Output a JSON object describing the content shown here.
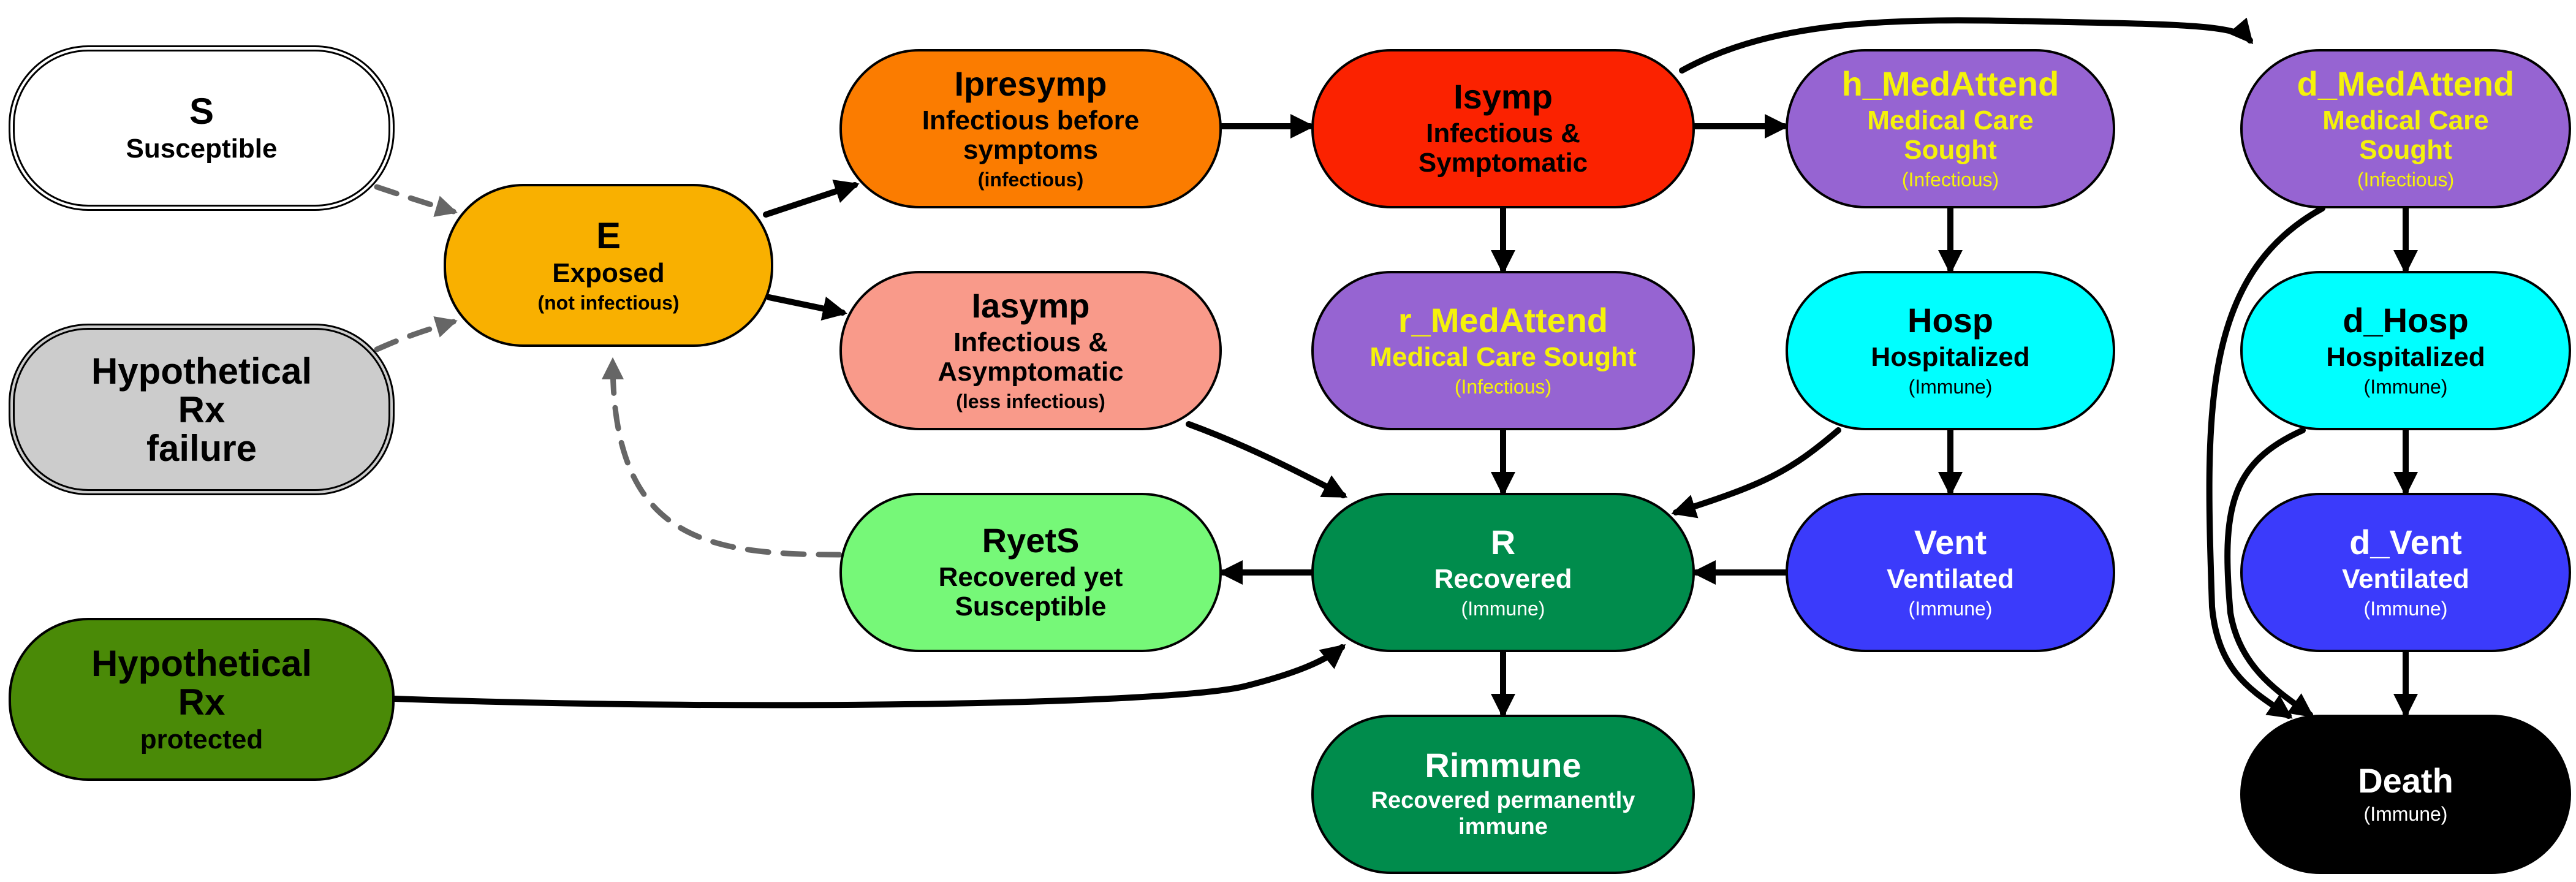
{
  "colors": {
    "susceptible": "#ffffff",
    "rx_failure": "#cccccc",
    "rx_protected": "#4a8a07",
    "exposed": "#f9b000",
    "ipresymp": "#fb7c00",
    "iasymp": "#f99a8a",
    "ryets": "#76f878",
    "isymp": "#fb2200",
    "med_attend": "#9664d2",
    "recovered": "#008c4c",
    "hospitalized": "#00ffff",
    "ventilated": "#3b3bfb",
    "death": "#000000",
    "label_yellow": "#f5f20a",
    "dashed_edge": "#666666"
  },
  "nodes": {
    "S": {
      "title": "S",
      "sub": "Susceptible"
    },
    "rx_failure": {
      "line1": "Hypothetical",
      "line2": "Rx",
      "line3": "failure"
    },
    "rx_protected": {
      "line1": "Hypothetical",
      "line2": "Rx",
      "line3": "protected"
    },
    "E": {
      "title": "E",
      "sub": "Exposed",
      "note": "(not infectious)"
    },
    "Ipresymp": {
      "title": "Ipresymp",
      "sub1": "Infectious before",
      "sub2": "symptoms",
      "note": "(infectious)"
    },
    "Iasymp": {
      "title": "Iasymp",
      "sub1": "Infectious &",
      "sub2": "Asymptomatic",
      "note": "(less infectious)"
    },
    "RyetS": {
      "title": "RyetS",
      "sub1": "Recovered yet",
      "sub2": "Susceptible"
    },
    "Isymp": {
      "title": "Isymp",
      "sub1": "Infectious &",
      "sub2": "Symptomatic"
    },
    "r_MedAttend": {
      "title": "r_MedAttend",
      "sub": "Medical Care Sought",
      "note": "(Infectious)"
    },
    "R": {
      "title": "R",
      "sub": "Recovered",
      "note": "(Immune)"
    },
    "Rimmune": {
      "title": "Rimmune",
      "sub1": "Recovered permanently",
      "sub2": "immune"
    },
    "h_MedAttend": {
      "title": "h_MedAttend",
      "sub1": "Medical Care",
      "sub2": "Sought",
      "note": "(Infectious)"
    },
    "Hosp": {
      "title": "Hosp",
      "sub": "Hospitalized",
      "note": "(Immune)"
    },
    "Vent": {
      "title": "Vent",
      "sub": "Ventilated",
      "note": "(Immune)"
    },
    "d_MedAttend": {
      "title": "d_MedAttend",
      "sub1": "Medical Care",
      "sub2": "Sought",
      "note": "(Infectious)"
    },
    "d_Hosp": {
      "title": "d_Hosp",
      "sub": "Hospitalized",
      "note": "(Immune)"
    },
    "d_Vent": {
      "title": "d_Vent",
      "sub": "Ventilated",
      "note": "(Immune)"
    },
    "Death": {
      "title": "Death",
      "note": "(Immune)"
    }
  },
  "edges": [
    {
      "from": "S",
      "to": "E",
      "style": "dashed"
    },
    {
      "from": "rx_failure",
      "to": "E",
      "style": "dashed"
    },
    {
      "from": "RyetS",
      "to": "E",
      "style": "dashed"
    },
    {
      "from": "E",
      "to": "Ipresymp",
      "style": "solid"
    },
    {
      "from": "E",
      "to": "Iasymp",
      "style": "solid"
    },
    {
      "from": "Ipresymp",
      "to": "Isymp",
      "style": "solid"
    },
    {
      "from": "Isymp",
      "to": "h_MedAttend",
      "style": "solid"
    },
    {
      "from": "Isymp",
      "to": "r_MedAttend",
      "style": "solid"
    },
    {
      "from": "Isymp",
      "to": "d_MedAttend",
      "style": "solid"
    },
    {
      "from": "Iasymp",
      "to": "R",
      "style": "solid"
    },
    {
      "from": "r_MedAttend",
      "to": "R",
      "style": "solid"
    },
    {
      "from": "R",
      "to": "RyetS",
      "style": "solid"
    },
    {
      "from": "R",
      "to": "Rimmune",
      "style": "solid"
    },
    {
      "from": "h_MedAttend",
      "to": "Hosp",
      "style": "solid"
    },
    {
      "from": "Hosp",
      "to": "Vent",
      "style": "solid"
    },
    {
      "from": "Hosp",
      "to": "R",
      "style": "solid"
    },
    {
      "from": "Vent",
      "to": "R",
      "style": "solid"
    },
    {
      "from": "d_MedAttend",
      "to": "d_Hosp",
      "style": "solid"
    },
    {
      "from": "d_Hosp",
      "to": "d_Vent",
      "style": "solid"
    },
    {
      "from": "d_Vent",
      "to": "Death",
      "style": "solid"
    },
    {
      "from": "d_MedAttend",
      "to": "Death",
      "style": "solid"
    },
    {
      "from": "d_Hosp",
      "to": "Death",
      "style": "solid"
    },
    {
      "from": "rx_protected",
      "to": "R",
      "style": "solid"
    }
  ]
}
